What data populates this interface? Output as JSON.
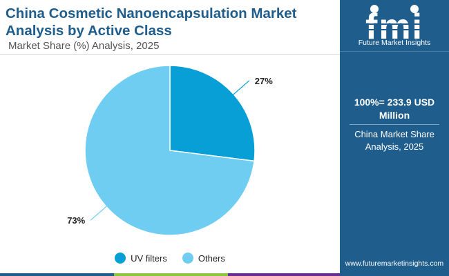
{
  "header": {
    "title": "China Cosmetic Nanoencapsulation Market Analysis by Active Class",
    "subtitle": "Market Share (%) Analysis, 2025"
  },
  "chart_data": {
    "type": "pie",
    "title": "China Cosmetic Nanoencapsulation Market Analysis by Active Class",
    "subtitle": "Market Share (%) Analysis, 2025",
    "categories": [
      "UV filters",
      "Others"
    ],
    "values": [
      27,
      73
    ],
    "labels": [
      "27%",
      "73%"
    ],
    "colors": [
      "#079fd6",
      "#6fcdf1"
    ],
    "start_angle_deg": 0,
    "direction": "clockwise",
    "legend_position": "bottom"
  },
  "legend": {
    "items": [
      {
        "label": "UV filters",
        "color": "#079fd6"
      },
      {
        "label": "Others",
        "color": "#6fcdf1"
      }
    ]
  },
  "sidebar": {
    "logo_text": "fmi",
    "brand_name": "Future Market Insights",
    "total_label": "100%= 233.9 USD Million",
    "total_note": "China Market Share Analysis, 2025",
    "website": "www.futuremarketinsights.com",
    "background_color": "#1f5d8c"
  },
  "bottom_bar_colors": [
    "#1f5d8c",
    "#8dc63f",
    "#6a2c8e",
    "#1f5d8c"
  ]
}
